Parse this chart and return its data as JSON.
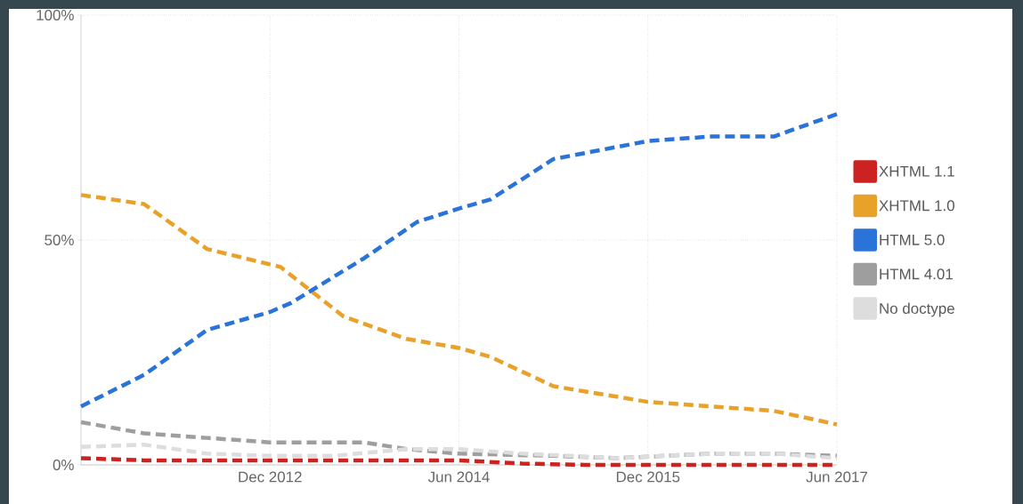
{
  "chart_data": {
    "type": "line",
    "line_style": "dashed",
    "grid": true,
    "legend": "right",
    "xlim": [
      "2011-06",
      "2017-06"
    ],
    "ylim": [
      0,
      100
    ],
    "xticks": [
      {
        "value": "2012-12",
        "label": "Dec 2012"
      },
      {
        "value": "2014-06",
        "label": "Jun 2014"
      },
      {
        "value": "2015-12",
        "label": "Dec 2015"
      },
      {
        "value": "2017-06",
        "label": "Jun 2017"
      }
    ],
    "yticks": [
      {
        "value": 0,
        "label": "0%"
      },
      {
        "value": 50,
        "label": "50%"
      },
      {
        "value": 100,
        "label": "100%"
      }
    ],
    "series": [
      {
        "name": "XHTML 1.1",
        "color": "#cc2222",
        "x": [
          "2011-06",
          "2011-12",
          "2012-06",
          "2013-06",
          "2014-06",
          "2014-12",
          "2015-06",
          "2016-06",
          "2017-06"
        ],
        "values": [
          1.5,
          1,
          1,
          1,
          1,
          0.3,
          0,
          0,
          0
        ]
      },
      {
        "name": "XHTML 1.0",
        "color": "#e8a22a",
        "x": [
          "2011-06",
          "2011-12",
          "2012-06",
          "2013-01",
          "2013-07",
          "2014-01",
          "2014-06",
          "2014-09",
          "2015-03",
          "2015-12",
          "2016-12",
          "2017-06"
        ],
        "values": [
          60,
          58,
          48,
          44,
          33,
          28,
          26,
          24,
          17.5,
          14,
          12,
          9
        ]
      },
      {
        "name": "HTML 5.0",
        "color": "#2a73d9",
        "x": [
          "2011-06",
          "2011-12",
          "2012-06",
          "2012-12",
          "2013-02",
          "2013-09",
          "2014-02",
          "2014-06",
          "2014-09",
          "2015-03",
          "2015-12",
          "2016-06",
          "2016-12",
          "2017-06"
        ],
        "values": [
          13,
          20,
          30,
          34,
          36,
          46,
          54,
          57,
          59,
          68,
          72,
          73,
          73,
          78
        ]
      },
      {
        "name": "HTML 4.01",
        "color": "#9e9e9e",
        "x": [
          "2011-06",
          "2011-12",
          "2012-06",
          "2012-12",
          "2013-06",
          "2013-09",
          "2014-01",
          "2014-06",
          "2015-03",
          "2015-09",
          "2016-06",
          "2016-12",
          "2017-06"
        ],
        "values": [
          9.5,
          7,
          6,
          5,
          5,
          5,
          3.5,
          2.5,
          2,
          1.5,
          2.5,
          2.5,
          2
        ]
      },
      {
        "name": "No doctype",
        "color": "#dddddd",
        "x": [
          "2011-06",
          "2011-12",
          "2012-06",
          "2012-12",
          "2013-06",
          "2014-01",
          "2014-06",
          "2014-12",
          "2015-09",
          "2016-06",
          "2016-12",
          "2017-06"
        ],
        "values": [
          4,
          4.5,
          2.5,
          2,
          2,
          3.5,
          3.5,
          2.5,
          1.5,
          2.5,
          2.5,
          1.5
        ]
      }
    ]
  }
}
